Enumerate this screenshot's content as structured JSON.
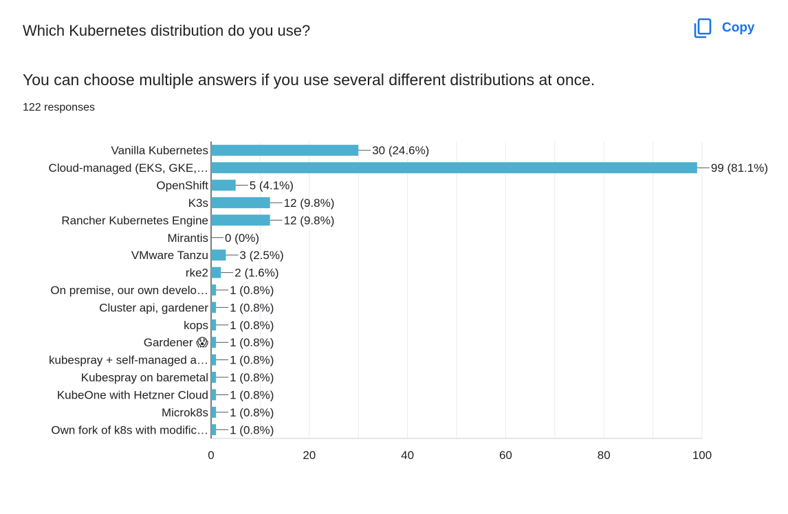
{
  "question": {
    "title": "Which Kubernetes distribution do you use?",
    "description": "You can choose multiple answers if you use several different distributions at once.",
    "responses": "122 responses"
  },
  "toolbar": {
    "copy_label": "Copy",
    "copy_icon": "copy-icon",
    "accent_color": "#1a73e8"
  },
  "chart_data": {
    "type": "bar",
    "orientation": "horizontal",
    "categories": [
      "Vanilla Kubernetes",
      "Cloud-managed (EKS, GKE,…",
      "OpenShift",
      "K3s",
      "Rancher Kubernetes Engine",
      "Mirantis",
      "VMware Tanzu",
      "rke2",
      "On premise, our own develo…",
      "Cluster api, gardener",
      "kops",
      "Gardener 😱",
      "kubespray + self-managed a…",
      "Kubespray on baremetal",
      "KubeOne with Hetzner Cloud",
      "Microk8s",
      "Own fork of k8s with modific…"
    ],
    "values": [
      30,
      99,
      5,
      12,
      12,
      0,
      3,
      2,
      1,
      1,
      1,
      1,
      1,
      1,
      1,
      1,
      1
    ],
    "data_labels": [
      "30 (24.6%)",
      "99 (81.1%)",
      "5 (4.1%)",
      "12 (9.8%)",
      "12 (9.8%)",
      "0 (0%)",
      "3 (2.5%)",
      "2 (1.6%)",
      "1 (0.8%)",
      "1 (0.8%)",
      "1 (0.8%)",
      "1 (0.8%)",
      "1 (0.8%)",
      "1 (0.8%)",
      "1 (0.8%)",
      "1 (0.8%)",
      "1 (0.8%)"
    ],
    "xlim": [
      0,
      100
    ],
    "xticks": [
      0,
      20,
      40,
      60,
      80,
      100
    ],
    "grid": true,
    "bar_color": "#4db0cf",
    "title": "",
    "xlabel": "",
    "ylabel": ""
  }
}
